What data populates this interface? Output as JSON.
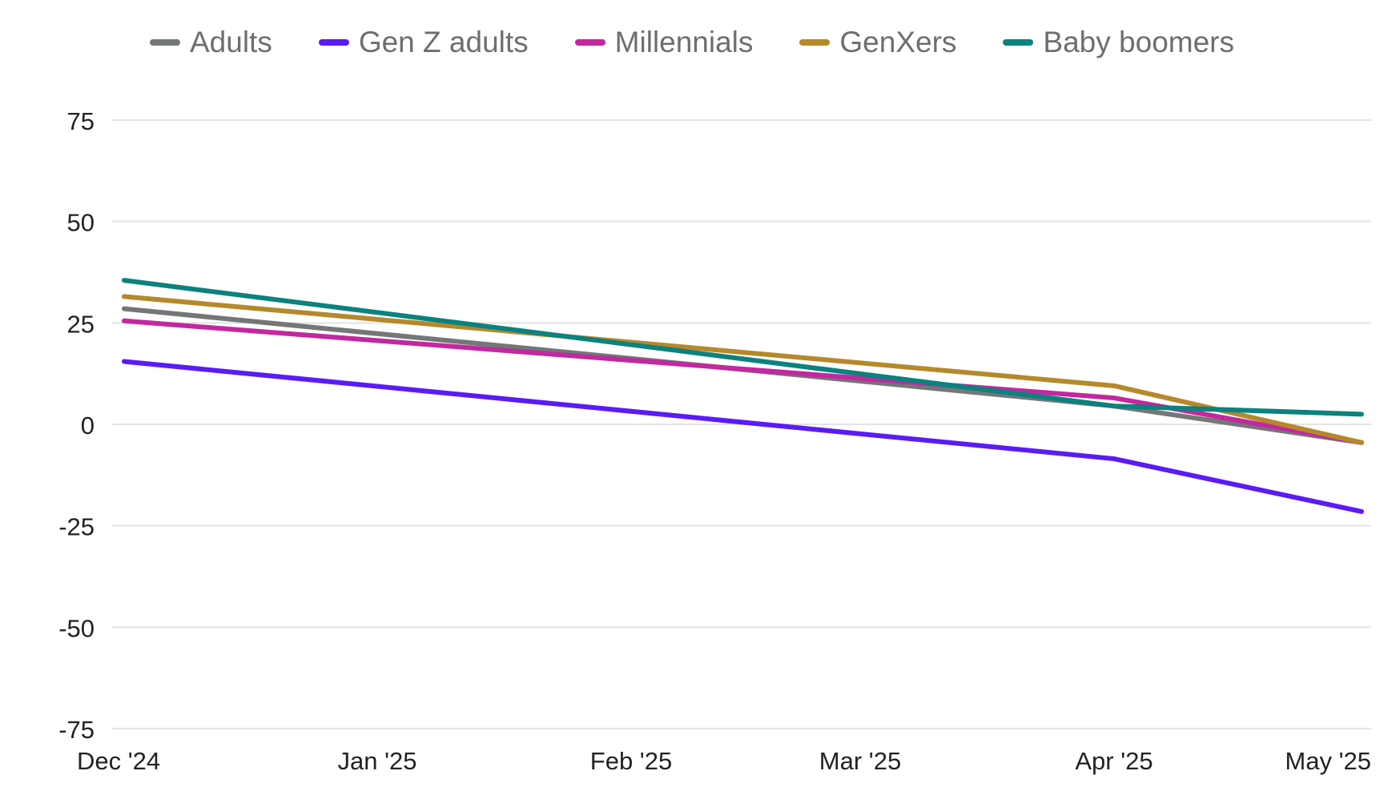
{
  "chart_data": {
    "type": "line",
    "title": "",
    "xlabel": "",
    "ylabel": "",
    "categories": [
      "Dec '24",
      "Jan '25",
      "Feb '25",
      "Mar '25",
      "Apr '25",
      "May '25"
    ],
    "x": [
      0,
      1,
      2,
      3,
      4,
      5
    ],
    "ylim": [
      -75,
      75
    ],
    "yticks": [
      75,
      50,
      25,
      0,
      -25,
      -50,
      -75
    ],
    "ytick_labels": [
      "75",
      "50",
      "25",
      "0",
      "-25",
      "-50",
      "-75"
    ],
    "grid": true,
    "legend_position": "top-center",
    "series": [
      {
        "name": "Adults",
        "color": "#737778",
        "values": [
          null,
          null,
          null,
          null,
          null,
          null
        ],
        "points": [
          [
            0,
            28.5
          ],
          [
            4,
            4.5
          ],
          [
            5,
            -4.5
          ]
        ]
      },
      {
        "name": "Gen Z adults",
        "color": "#5b1bf5",
        "points": [
          [
            0,
            15.5
          ],
          [
            4,
            -8.5
          ],
          [
            5,
            -21.5
          ]
        ]
      },
      {
        "name": "Millennials",
        "color": "#c2289f",
        "points": [
          [
            0,
            25.5
          ],
          [
            4,
            6.5
          ],
          [
            5,
            -4.5
          ]
        ]
      },
      {
        "name": "GenXers",
        "color": "#b5892b",
        "points": [
          [
            0,
            31.5
          ],
          [
            4,
            9.5
          ],
          [
            5,
            -4.5
          ]
        ]
      },
      {
        "name": "Baby boomers",
        "color": "#0b827e",
        "points": [
          [
            0,
            35.5
          ],
          [
            4,
            4.5
          ],
          [
            5,
            2.5
          ]
        ]
      }
    ]
  }
}
